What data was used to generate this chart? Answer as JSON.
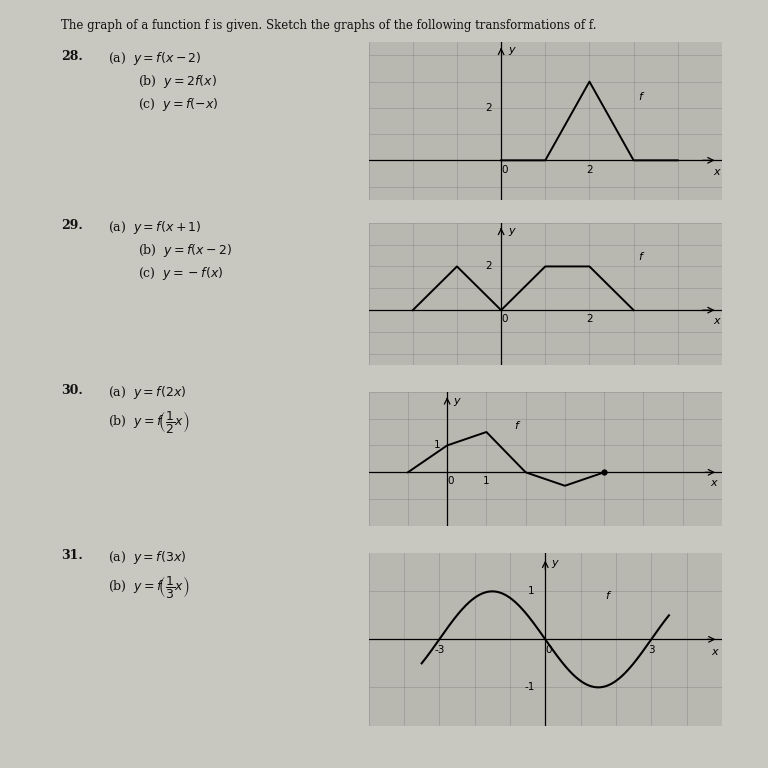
{
  "bg_color": "#c8c8c0",
  "graph_bg": "#b8b8b0",
  "grid_color": "#808080",
  "text_color": "#111111",
  "title": "The graph of a function f is given. Sketch the graphs of the following transformations of f.",
  "graph28": {
    "xlim": [
      -3,
      5
    ],
    "ylim": [
      -1.5,
      4.5
    ],
    "px": [
      0,
      1,
      2,
      3,
      4
    ],
    "py": [
      0,
      0,
      3,
      0,
      0
    ],
    "xtick_pos": 2,
    "xtick_lbl": "2",
    "ytick_pos": 2,
    "ytick_lbl": "2",
    "f_x": 3.1,
    "f_y": 2.3
  },
  "graph29": {
    "xlim": [
      -3,
      5
    ],
    "ylim": [
      -2.5,
      4.0
    ],
    "px": [
      -2,
      -1,
      0,
      1,
      2,
      3
    ],
    "py": [
      0,
      2,
      0,
      2,
      2,
      0
    ],
    "xtick_pos": 2,
    "xtick_lbl": "2",
    "ytick_pos": 2,
    "ytick_lbl": "2",
    "f_x": 3.1,
    "f_y": 2.3
  },
  "graph30": {
    "xlim": [
      -2,
      7
    ],
    "ylim": [
      -2,
      3
    ],
    "px": [
      -1,
      0,
      1,
      2,
      3,
      4
    ],
    "py": [
      0,
      1,
      1.5,
      0,
      -0.5,
      0
    ],
    "xtick_pos": 1,
    "xtick_lbl": "1",
    "ytick_pos": 1,
    "ytick_lbl": "1",
    "f_x": 1.7,
    "f_y": 1.6,
    "dot_x": 4,
    "dot_y": 0
  },
  "graph31": {
    "xlim": [
      -5,
      5
    ],
    "ylim": [
      -1.8,
      1.8
    ],
    "xtick_labels": [
      "-3",
      "3"
    ],
    "xtick_vals": [
      -3,
      3
    ],
    "ytick_pos": 1,
    "ytick_lbl": "1",
    "f_x": 1.7,
    "f_y": 0.85
  }
}
